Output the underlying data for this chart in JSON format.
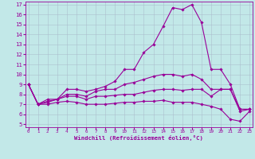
{
  "xlabel": "Windchill (Refroidissement éolien,°C)",
  "xlim": [
    0,
    23
  ],
  "ylim": [
    5,
    17
  ],
  "yticks": [
    5,
    6,
    7,
    8,
    9,
    10,
    11,
    12,
    13,
    14,
    15,
    16,
    17
  ],
  "xticks": [
    0,
    1,
    2,
    3,
    4,
    5,
    6,
    7,
    8,
    9,
    10,
    11,
    12,
    13,
    14,
    15,
    16,
    17,
    18,
    19,
    20,
    21,
    22,
    23
  ],
  "bg_color": "#c2e8e8",
  "line_color": "#990099",
  "grid_color": "#aabbcc",
  "lines": [
    [
      9.0,
      7.0,
      7.5,
      7.5,
      8.5,
      8.5,
      8.3,
      8.5,
      8.8,
      9.3,
      10.5,
      10.5,
      12.2,
      13.0,
      14.8,
      16.7,
      16.5,
      17.0,
      15.2,
      10.5,
      10.5,
      9.0,
      6.5,
      6.5
    ],
    [
      9.0,
      7.0,
      7.3,
      7.5,
      8.0,
      8.0,
      7.8,
      8.3,
      8.5,
      8.5,
      9.0,
      9.2,
      9.5,
      9.8,
      10.0,
      10.0,
      9.8,
      10.0,
      9.5,
      8.5,
      8.5,
      8.5,
      6.5,
      6.5
    ],
    [
      9.0,
      7.0,
      7.2,
      7.5,
      7.8,
      7.8,
      7.5,
      7.8,
      7.8,
      7.9,
      8.0,
      8.0,
      8.2,
      8.4,
      8.5,
      8.5,
      8.4,
      8.5,
      8.5,
      7.8,
      8.5,
      8.5,
      6.3,
      6.5
    ],
    [
      9.0,
      7.0,
      7.0,
      7.2,
      7.3,
      7.2,
      7.0,
      7.0,
      7.0,
      7.1,
      7.2,
      7.2,
      7.3,
      7.3,
      7.4,
      7.2,
      7.2,
      7.2,
      7.0,
      6.8,
      6.5,
      5.5,
      5.3,
      6.3
    ]
  ]
}
